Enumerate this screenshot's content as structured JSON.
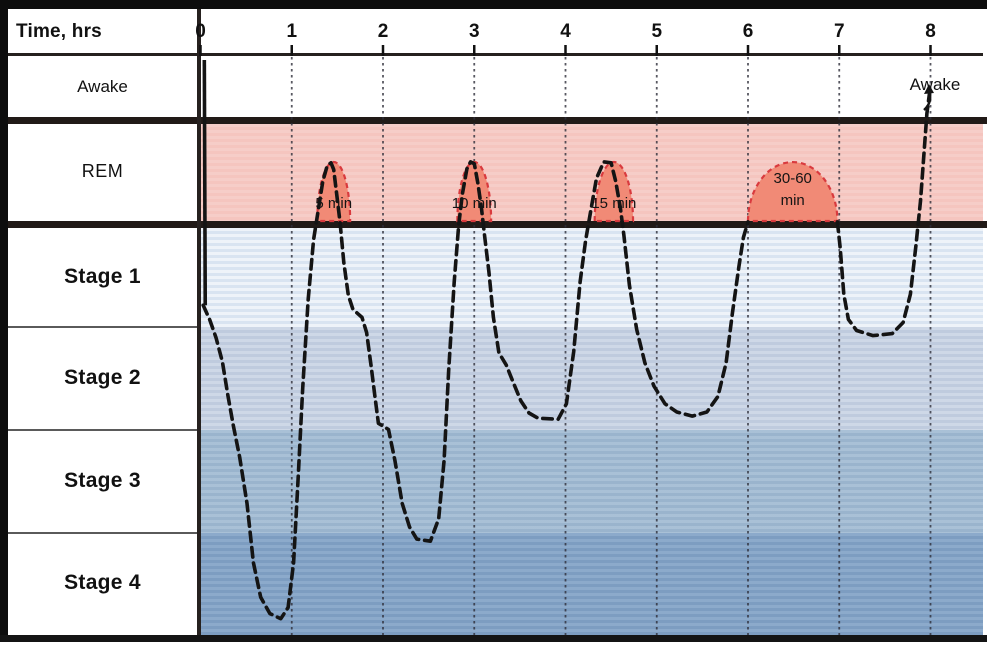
{
  "title_area": {
    "x_axis_title": "Time, hrs"
  },
  "rows": {
    "awake": "Awake",
    "rem": "REM",
    "stage1": "Stage 1",
    "stage2": "Stage 2",
    "stage3": "Stage 3",
    "stage4": "Stage 4"
  },
  "annotations": {
    "awake_end": "Awake"
  },
  "colors": {
    "rem_band": "#f5c5bf",
    "rem_dome_fill": "#f18a76",
    "rem_dome_outline": "#d93a3e",
    "stage1_band": "#dde7f2",
    "stage2_band": "#c3cfe2",
    "stage3_band": "#9db8d1",
    "stage4_band": "#7fa0c5",
    "curve": "#141414",
    "gridline": "#2f2f3a",
    "frame": "#0d0d0d"
  },
  "chart_data": {
    "type": "line",
    "subtype": "hypnogram",
    "xlabel": "Time, hrs",
    "x_ticks": [
      0,
      1,
      2,
      3,
      4,
      5,
      6,
      7,
      8
    ],
    "x_range": [
      0,
      8
    ],
    "y_categories": [
      "Awake",
      "REM",
      "Stage 1",
      "Stage 2",
      "Stage 3",
      "Stage 4"
    ],
    "grid": "vertical-hour-lines",
    "legend": "none",
    "rem_periods": [
      {
        "label": "5 min",
        "lines": [
          "5 min"
        ],
        "center_hr": 1.46,
        "half_width_hr": 0.18
      },
      {
        "label": "10 min",
        "lines": [
          "10 min"
        ],
        "center_hr": 3.0,
        "half_width_hr": 0.185
      },
      {
        "label": "15 min",
        "lines": [
          "15 min"
        ],
        "center_hr": 4.53,
        "half_width_hr": 0.21
      },
      {
        "label": "30-60 min",
        "lines": [
          "30-60",
          "min"
        ],
        "center_hr": 6.49,
        "half_width_hr": 0.49
      }
    ],
    "depth_scale_note": "depth 0=Awake, 1=REM, 2=Stage 1, 3=Stage 2, 4=Stage 3, 5=Stage 4",
    "curve": {
      "solid_start": [
        [
          0.02,
          -0.33
        ],
        [
          0.03,
          2.28
        ]
      ],
      "segments": [
        [
          [
            0.03,
            2.28
          ],
          [
            0.1,
            2.42
          ],
          [
            0.17,
            2.6
          ],
          [
            0.24,
            2.84
          ],
          [
            0.3,
            3.17
          ],
          [
            0.36,
            3.46
          ],
          [
            0.43,
            3.77
          ],
          [
            0.51,
            4.22
          ],
          [
            0.58,
            4.8
          ],
          [
            0.66,
            5.14
          ],
          [
            0.76,
            5.3
          ],
          [
            0.88,
            5.35
          ],
          [
            0.96,
            5.24
          ],
          [
            1.02,
            4.8
          ],
          [
            1.07,
            3.98
          ],
          [
            1.12,
            3.1
          ],
          [
            1.18,
            2.22
          ],
          [
            1.24,
            1.64
          ],
          [
            1.29,
            1.36
          ],
          [
            1.34,
            1.08
          ],
          [
            1.39,
            0.91
          ],
          [
            1.43,
            0.88
          ],
          [
            1.46,
            0.96
          ],
          [
            1.5,
            1.26
          ],
          [
            1.53,
            1.48
          ],
          [
            1.57,
            1.86
          ],
          [
            1.62,
            2.18
          ],
          [
            1.67,
            2.32
          ],
          [
            1.77,
            2.4
          ],
          [
            1.82,
            2.55
          ],
          [
            1.87,
            2.88
          ],
          [
            1.91,
            3.17
          ],
          [
            1.95,
            3.44
          ],
          [
            2.06,
            3.5
          ],
          [
            2.13,
            3.8
          ],
          [
            2.21,
            4.22
          ],
          [
            2.29,
            4.45
          ],
          [
            2.37,
            4.57
          ],
          [
            2.52,
            4.59
          ],
          [
            2.61,
            4.37
          ],
          [
            2.67,
            3.8
          ],
          [
            2.72,
            2.92
          ],
          [
            2.78,
            2.05
          ],
          [
            2.83,
            1.5
          ],
          [
            2.87,
            1.2
          ],
          [
            2.92,
            0.95
          ],
          [
            2.96,
            0.87
          ],
          [
            3.0,
            0.89
          ],
          [
            3.04,
            1.1
          ],
          [
            3.08,
            1.35
          ],
          [
            3.11,
            1.58
          ],
          [
            3.16,
            1.95
          ],
          [
            3.21,
            2.4
          ],
          [
            3.27,
            2.75
          ],
          [
            3.35,
            2.87
          ],
          [
            3.43,
            3.05
          ],
          [
            3.51,
            3.22
          ],
          [
            3.6,
            3.34
          ],
          [
            3.7,
            3.39
          ],
          [
            3.92,
            3.4
          ],
          [
            4.01,
            3.25
          ],
          [
            4.09,
            2.74
          ],
          [
            4.16,
            2.05
          ],
          [
            4.22,
            1.65
          ],
          [
            4.28,
            1.35
          ],
          [
            4.34,
            1.05
          ],
          [
            4.42,
            0.87
          ],
          [
            4.5,
            0.88
          ],
          [
            4.55,
            1.08
          ],
          [
            4.6,
            1.33
          ],
          [
            4.64,
            1.6
          ],
          [
            4.7,
            2.08
          ],
          [
            4.78,
            2.52
          ],
          [
            4.87,
            2.85
          ],
          [
            4.97,
            3.08
          ],
          [
            5.09,
            3.25
          ],
          [
            5.22,
            3.33
          ],
          [
            5.39,
            3.37
          ],
          [
            5.55,
            3.33
          ],
          [
            5.67,
            3.18
          ],
          [
            5.76,
            2.85
          ],
          [
            5.83,
            2.35
          ],
          [
            5.9,
            1.9
          ],
          [
            5.95,
            1.62
          ],
          [
            6.0,
            1.47
          ]
        ],
        [
          [
            6.98,
            1.47
          ],
          [
            7.01,
            1.72
          ],
          [
            7.05,
            2.17
          ],
          [
            7.1,
            2.42
          ],
          [
            7.19,
            2.53
          ],
          [
            7.37,
            2.58
          ],
          [
            7.58,
            2.56
          ],
          [
            7.7,
            2.45
          ],
          [
            7.78,
            2.17
          ],
          [
            7.84,
            1.7
          ],
          [
            7.89,
            1.27
          ],
          [
            7.93,
            0.75
          ],
          [
            7.96,
            0.3
          ],
          [
            7.99,
            0.05
          ]
        ]
      ]
    }
  }
}
